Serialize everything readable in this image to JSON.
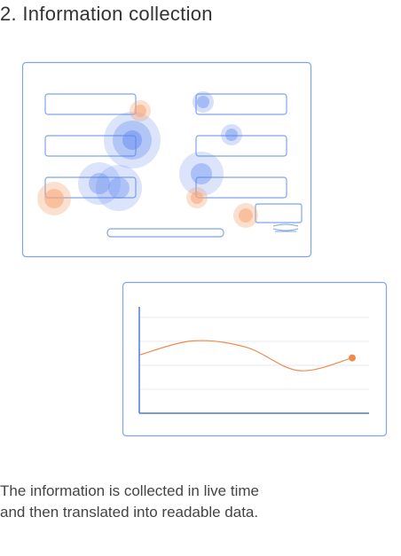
{
  "heading": {
    "title": "2. Information collection"
  },
  "caption": {
    "line1": "The information is collected in live time",
    "line2": "and then translated into readable data."
  },
  "colors": {
    "frame": "#7fa5ea",
    "heat_blue": "#5b85ee",
    "heat_orange": "#f7a676",
    "curve": "#f08a4b",
    "axis": "#4a7bdc",
    "grid": "#e4e8ee"
  },
  "chart_data": {
    "type": "line",
    "title": "",
    "xlabel": "",
    "ylabel": "",
    "grid": true,
    "series": [
      {
        "values": [
          0.55,
          0.68,
          0.62,
          0.4,
          0.52
        ]
      }
    ]
  }
}
